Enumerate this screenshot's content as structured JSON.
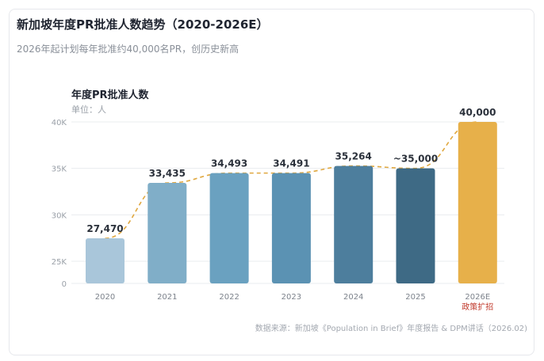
{
  "title": "新加坡年度PR批准人数趋势（2020-2026E）",
  "subtitle": "2026年起计划每年批准约40,000名PR，创历史新高",
  "source": "数据来源：新加坡《Population in Brief》年度报告 & DPM讲话（2026.02)",
  "colors": {
    "bars": [
      "#a9c6da",
      "#80aec8",
      "#6aa1c0",
      "#5b92b3",
      "#4d7e9d",
      "#3e6a85",
      "#e7b04a"
    ],
    "trend": "#e0a840",
    "grid": "#e9ecef",
    "note": "#c0392b"
  },
  "chart_data": {
    "type": "bar",
    "title": "年度PR批准人数",
    "ylabel": "单位：人",
    "xlabel": "",
    "categories": [
      "2020",
      "2021",
      "2022",
      "2023",
      "2024",
      "2025",
      "2026E"
    ],
    "values": [
      27470,
      33435,
      34493,
      34491,
      35264,
      35000,
      40000
    ],
    "value_labels": [
      "27,470",
      "33,435",
      "34,493",
      "34,491",
      "35,264",
      "~35,000",
      "40,000"
    ],
    "ylim_display": [
      0,
      40000
    ],
    "axis_break": [
      0,
      25000
    ],
    "yticks": [
      0,
      25000,
      30000,
      35000,
      40000
    ],
    "ytick_labels": [
      "0",
      "25K",
      "30K",
      "35K",
      "40K"
    ],
    "trend_line": true,
    "grid": true,
    "annotations": [
      {
        "category": "2026E",
        "text": "政策扩招"
      }
    ]
  }
}
